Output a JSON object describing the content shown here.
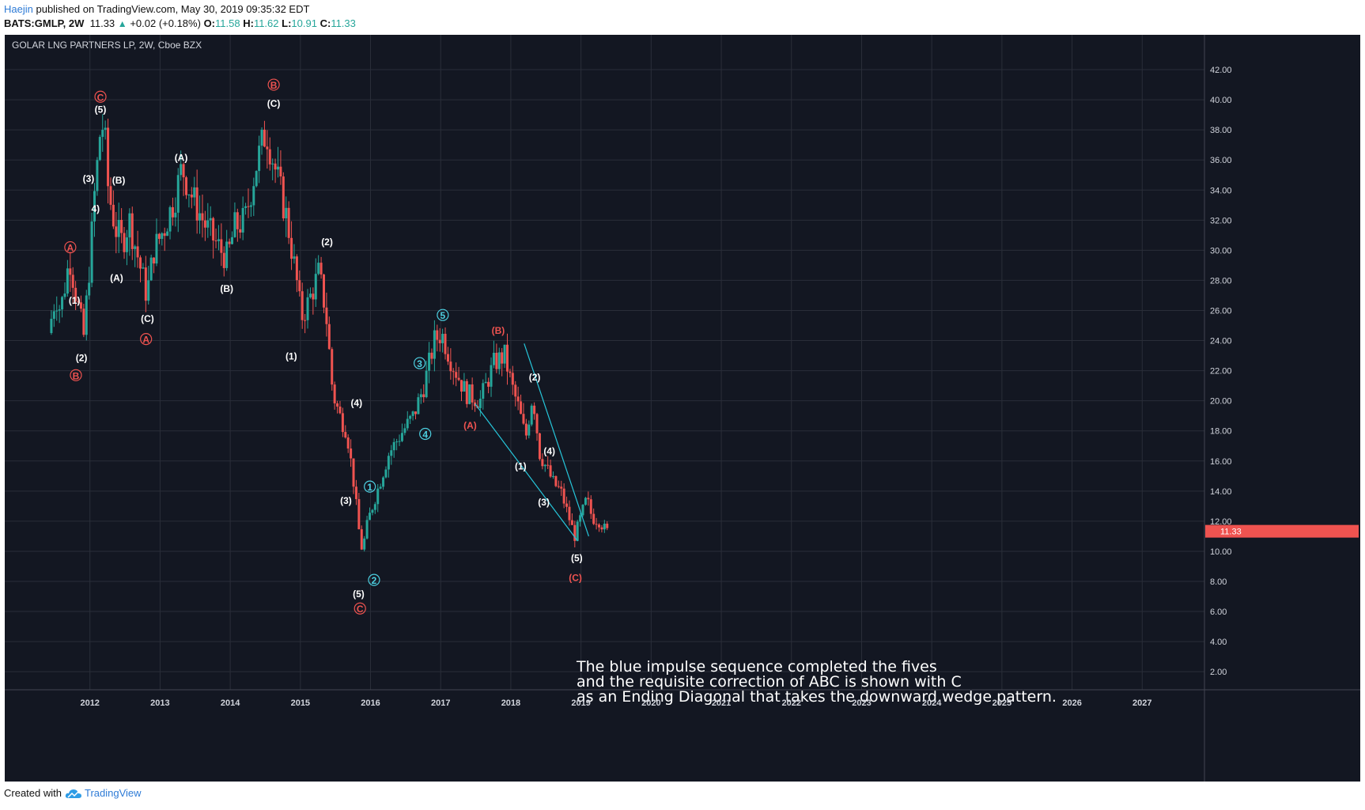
{
  "header": {
    "author": "Haejin",
    "published_text": "published on TradingView.com, May 30, 2019 09:35:32 EDT",
    "symbol": "BATS:GMLP, 2W",
    "last": "11.33",
    "change": "+0.02 (+0.18%)",
    "o_label": "O:",
    "o_value": "11.58",
    "h_label": "H:",
    "h_value": "11.62",
    "l_label": "L:",
    "l_value": "10.91",
    "c_label": "C:",
    "c_value": "11.33"
  },
  "footer": {
    "created_with": "Created with",
    "brand": "TradingView"
  },
  "colors": {
    "background": "#131722",
    "up": "#26a69a",
    "down": "#ef5350",
    "wave_white": "#ffffff",
    "wave_red": "#ef5350",
    "wave_cyan": "#4dd0e1",
    "price_tag": "#ef5350"
  },
  "chart_data": {
    "type": "candlestick",
    "title": "GOLAR LNG PARTNERS LP, 2W, Cboe BZX",
    "ylim": [
      0.8,
      43.0
    ],
    "y_ticks": [
      "2.00",
      "4.00",
      "6.00",
      "8.00",
      "10.00",
      "12.00",
      "14.00",
      "16.00",
      "18.00",
      "20.00",
      "22.00",
      "24.00",
      "26.00",
      "28.00",
      "30.00",
      "32.00",
      "34.00",
      "36.00",
      "38.00",
      "40.00",
      "42.00"
    ],
    "x_ticks": [
      "2012",
      "2013",
      "2014",
      "2015",
      "2016",
      "2017",
      "2018",
      "2019",
      "2020",
      "2021",
      "2022",
      "2023",
      "2024",
      "2025",
      "2026",
      "2027"
    ],
    "last_price_label": "11.33",
    "price_path": [
      [
        2011.45,
        24.5
      ],
      [
        2011.55,
        27.0
      ],
      [
        2011.62,
        26.0
      ],
      [
        2011.75,
        29.5
      ],
      [
        2011.85,
        26.8
      ],
      [
        2011.95,
        24.3
      ],
      [
        2012.05,
        30.0
      ],
      [
        2012.1,
        33.5
      ],
      [
        2012.15,
        36.0
      ],
      [
        2012.2,
        38.7
      ],
      [
        2012.25,
        37.5
      ],
      [
        2012.3,
        34.0
      ],
      [
        2012.4,
        31.5
      ],
      [
        2012.5,
        30.5
      ],
      [
        2012.6,
        32.0
      ],
      [
        2012.75,
        29.0
      ],
      [
        2012.85,
        27.0
      ],
      [
        2012.95,
        30.0
      ],
      [
        2013.1,
        31.5
      ],
      [
        2013.25,
        33.5
      ],
      [
        2013.35,
        35.5
      ],
      [
        2013.5,
        33.5
      ],
      [
        2013.7,
        31.5
      ],
      [
        2013.9,
        30.0
      ],
      [
        2014.0,
        29.5
      ],
      [
        2014.1,
        31.5
      ],
      [
        2014.25,
        32.0
      ],
      [
        2014.4,
        35.5
      ],
      [
        2014.55,
        38.0
      ],
      [
        2014.7,
        35.0
      ],
      [
        2014.85,
        32.0
      ],
      [
        2015.0,
        27.5
      ],
      [
        2015.05,
        25.5
      ],
      [
        2015.15,
        26.5
      ],
      [
        2015.3,
        28.5
      ],
      [
        2015.4,
        26.0
      ],
      [
        2015.5,
        20.5
      ],
      [
        2015.6,
        19.0
      ],
      [
        2015.7,
        18.0
      ],
      [
        2015.8,
        14.5
      ],
      [
        2015.87,
        11.5
      ],
      [
        2015.92,
        10.0
      ],
      [
        2016.0,
        12.0
      ],
      [
        2016.1,
        13.5
      ],
      [
        2016.3,
        16.5
      ],
      [
        2016.5,
        18.0
      ],
      [
        2016.65,
        19.0
      ],
      [
        2016.8,
        21.0
      ],
      [
        2016.95,
        24.0
      ],
      [
        2017.05,
        24.5
      ],
      [
        2017.2,
        22.5
      ],
      [
        2017.4,
        20.5
      ],
      [
        2017.6,
        20.0
      ],
      [
        2017.8,
        22.5
      ],
      [
        2017.95,
        23.0
      ],
      [
        2018.05,
        21.0
      ],
      [
        2018.15,
        19.5
      ],
      [
        2018.25,
        17.5
      ],
      [
        2018.35,
        20.5
      ],
      [
        2018.45,
        16.5
      ],
      [
        2018.55,
        15.5
      ],
      [
        2018.65,
        14.5
      ],
      [
        2018.75,
        14.0
      ],
      [
        2018.85,
        12.5
      ],
      [
        2018.95,
        11.0
      ],
      [
        2019.05,
        12.5
      ],
      [
        2019.12,
        13.5
      ],
      [
        2019.2,
        12.2
      ],
      [
        2019.3,
        12.0
      ],
      [
        2019.4,
        11.33
      ]
    ],
    "wave_labels": [
      {
        "t": "A",
        "x": 2011.72,
        "y": 30.2,
        "c": "red",
        "circle": true
      },
      {
        "t": "(1)",
        "x": 2011.78,
        "y": 26.7,
        "c": "white"
      },
      {
        "t": "(2)",
        "x": 2011.88,
        "y": 22.9,
        "c": "white"
      },
      {
        "t": "B",
        "x": 2011.8,
        "y": 21.7,
        "c": "red",
        "circle": true
      },
      {
        "t": "C",
        "x": 2012.15,
        "y": 40.2,
        "c": "red",
        "circle": true
      },
      {
        "t": "(5)",
        "x": 2012.15,
        "y": 39.4,
        "c": "white"
      },
      {
        "t": "(3)",
        "x": 2011.98,
        "y": 34.8,
        "c": "white"
      },
      {
        "t": "4)",
        "x": 2012.08,
        "y": 32.8,
        "c": "white"
      },
      {
        "t": "(B)",
        "x": 2012.41,
        "y": 34.7,
        "c": "white"
      },
      {
        "t": "(A)",
        "x": 2012.38,
        "y": 28.2,
        "c": "white"
      },
      {
        "t": "(C)",
        "x": 2012.82,
        "y": 25.5,
        "c": "white"
      },
      {
        "t": "A",
        "x": 2012.8,
        "y": 24.1,
        "c": "red",
        "circle": true
      },
      {
        "t": "(A)",
        "x": 2013.3,
        "y": 36.2,
        "c": "white"
      },
      {
        "t": "(B)",
        "x": 2013.95,
        "y": 27.5,
        "c": "white"
      },
      {
        "t": "B",
        "x": 2014.62,
        "y": 41.0,
        "c": "red",
        "circle": true
      },
      {
        "t": "(C)",
        "x": 2014.62,
        "y": 39.8,
        "c": "white"
      },
      {
        "t": "(2)",
        "x": 2015.38,
        "y": 30.6,
        "c": "white"
      },
      {
        "t": "(1)",
        "x": 2014.87,
        "y": 23.0,
        "c": "white"
      },
      {
        "t": "(4)",
        "x": 2015.8,
        "y": 19.9,
        "c": "white"
      },
      {
        "t": "(3)",
        "x": 2015.65,
        "y": 13.4,
        "c": "white"
      },
      {
        "t": "1",
        "x": 2015.99,
        "y": 14.3,
        "c": "cyan",
        "circle": true
      },
      {
        "t": "2",
        "x": 2016.05,
        "y": 8.1,
        "c": "cyan",
        "circle": true
      },
      {
        "t": "(5)",
        "x": 2015.83,
        "y": 7.2,
        "c": "white"
      },
      {
        "t": "C",
        "x": 2015.85,
        "y": 6.2,
        "c": "red",
        "circle": true
      },
      {
        "t": "3",
        "x": 2016.7,
        "y": 22.5,
        "c": "cyan",
        "circle": true
      },
      {
        "t": "4",
        "x": 2016.78,
        "y": 17.8,
        "c": "cyan",
        "circle": true
      },
      {
        "t": "5",
        "x": 2017.03,
        "y": 25.7,
        "c": "cyan",
        "circle": true
      },
      {
        "t": "(B)",
        "x": 2017.82,
        "y": 24.7,
        "c": "red"
      },
      {
        "t": "(A)",
        "x": 2017.42,
        "y": 18.4,
        "c": "red"
      },
      {
        "t": "(2)",
        "x": 2018.34,
        "y": 21.6,
        "c": "white"
      },
      {
        "t": "(1)",
        "x": 2018.14,
        "y": 15.7,
        "c": "white"
      },
      {
        "t": "(4)",
        "x": 2018.55,
        "y": 16.7,
        "c": "white"
      },
      {
        "t": "(3)",
        "x": 2018.47,
        "y": 13.3,
        "c": "white"
      },
      {
        "t": "(5)",
        "x": 2018.94,
        "y": 9.6,
        "c": "white"
      },
      {
        "t": "(C)",
        "x": 2018.92,
        "y": 8.3,
        "c": "red"
      }
    ],
    "wedge_lines": [
      {
        "x1": 2017.49,
        "y1": 19.8,
        "x2": 2018.95,
        "y2": 10.7
      },
      {
        "x1": 2018.19,
        "y1": 23.8,
        "x2": 2019.11,
        "y2": 11.0
      }
    ],
    "annotation": [
      "The blue impulse sequence completed the fives",
      "and the requisite correction of ABC is shown with C",
      "as an Ending Diagonal that takes the downward wedge pattern."
    ]
  }
}
